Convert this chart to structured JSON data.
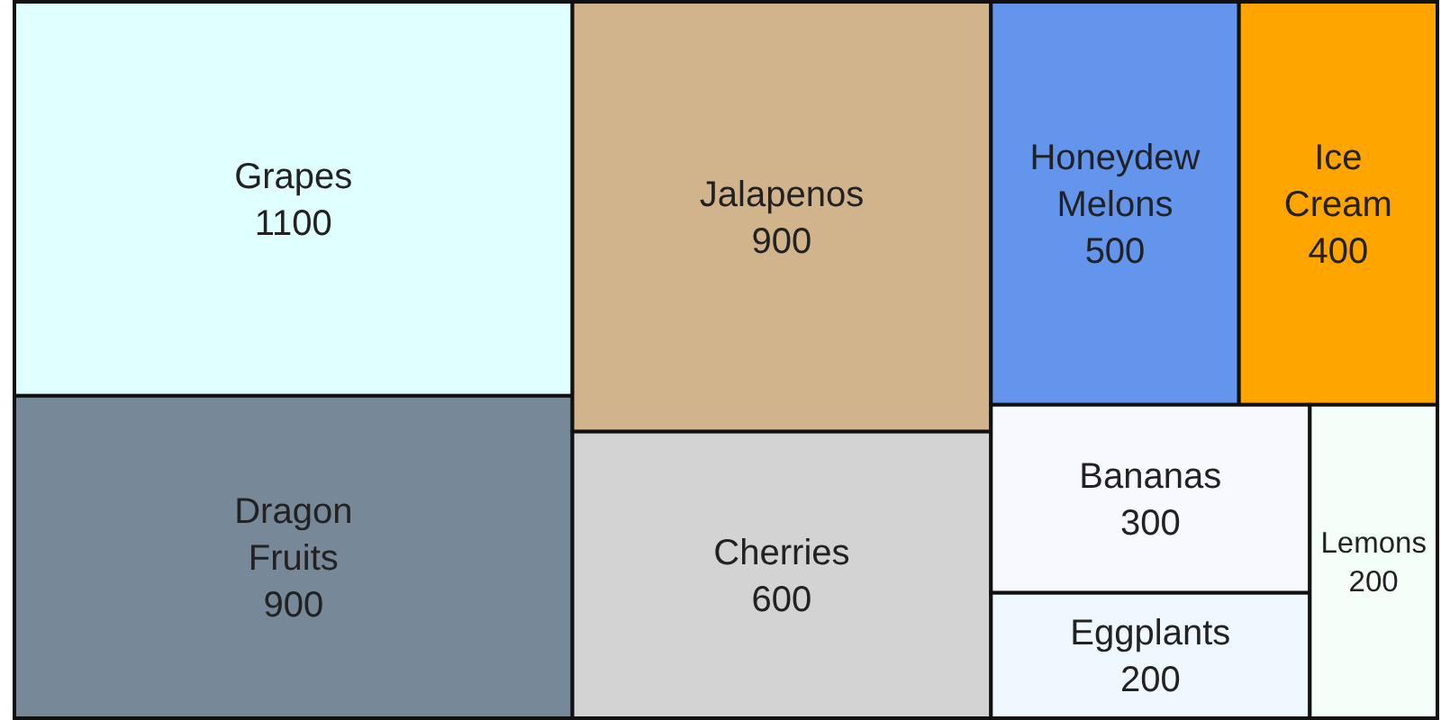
{
  "chart_data": {
    "type": "other",
    "categories": [
      "Grapes",
      "Dragon Fruits",
      "Jalapenos",
      "Cherries",
      "Honeydew Melons",
      "Ice Cream",
      "Bananas",
      "Eggplants",
      "Lemons"
    ],
    "values": [
      1100,
      900,
      900,
      600,
      500,
      400,
      300,
      200,
      200
    ],
    "colors": [
      "#e0ffff",
      "#778899",
      "#d2b48c",
      "#d3d3d3",
      "#6495ed",
      "#ffa500",
      "#f8f8ff",
      "#f0f8ff",
      "#f5fffa"
    ],
    "data_labels": true
  }
}
